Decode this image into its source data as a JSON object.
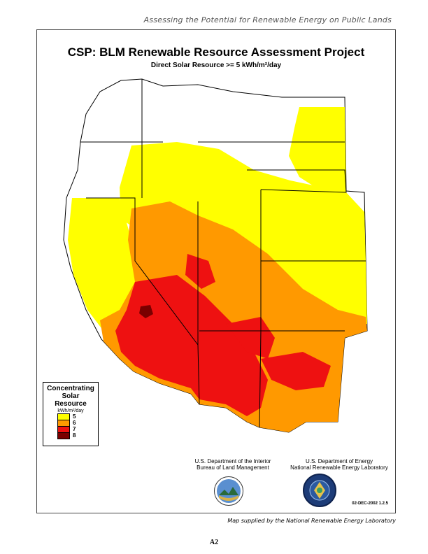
{
  "header": {
    "running_title": "Assessing the Potential for Renewable Energy on Public Lands"
  },
  "map": {
    "title": "CSP:  BLM Renewable Resource Assessment Project",
    "subtitle": "Direct Solar Resource >= 5 kWh/m²/day"
  },
  "legend": {
    "title_line1": "Concentrating",
    "title_line2": "Solar Resource",
    "unit": "kWh/m²/day",
    "items": [
      {
        "label": "5",
        "color": "#ffff00"
      },
      {
        "label": "6",
        "color": "#ff9900"
      },
      {
        "label": "7",
        "color": "#ee1111"
      },
      {
        "label": "8",
        "color": "#7a0000"
      }
    ]
  },
  "agencies": {
    "blm_line1": "U.S. Department of the Interior",
    "blm_line2": "Bureau of Land Management",
    "doe_line1": "U.S. Department of Energy",
    "doe_line2": "National Renewable Energy Laboratory"
  },
  "date_code": "02-DEC-2002 1.2.5",
  "footer": {
    "credit": "Map supplied by the National Renewable Energy Laboratory",
    "page_number": "A2"
  }
}
